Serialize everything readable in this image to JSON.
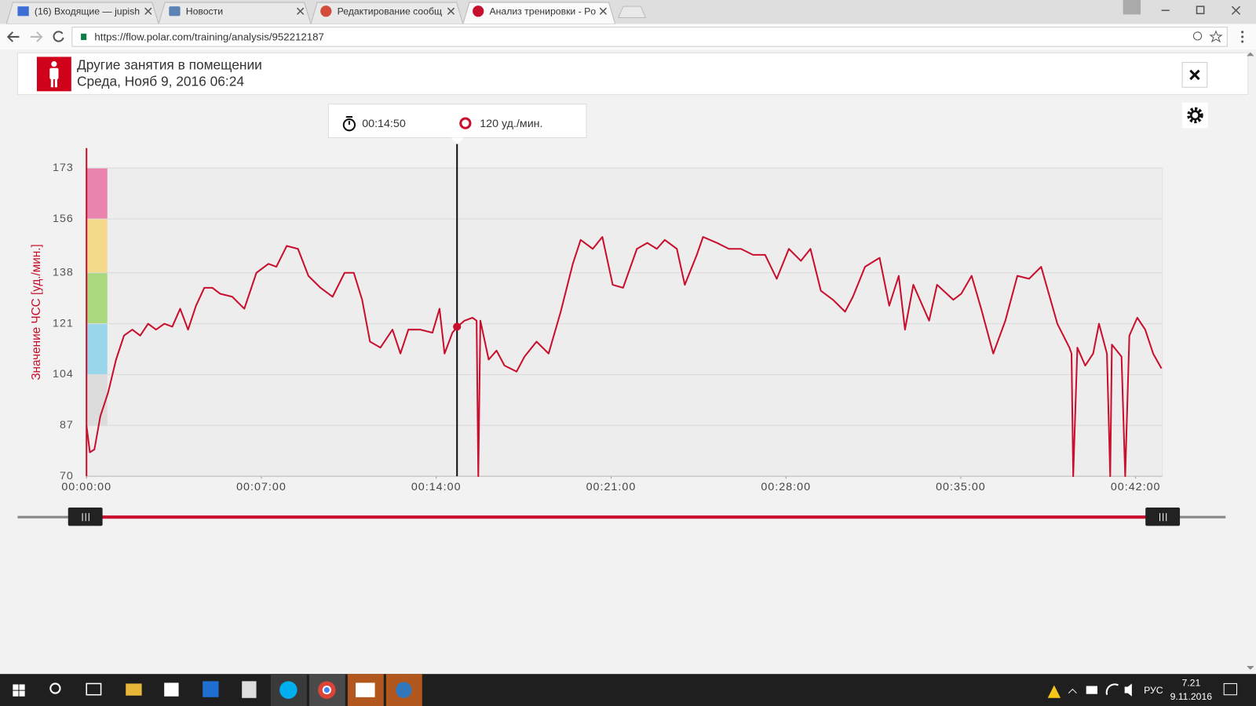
{
  "browser": {
    "tabs": [
      "(16) Входящие — jupish",
      "Новости",
      "Редактирование сообщ",
      "Анализ тренировки - Po"
    ],
    "url": "https://flow.polar.com/training/analysis/952212187"
  },
  "header": {
    "title": "Другие занятия в помещении",
    "date": "Среда, Нояб 9, 2016 06:24"
  },
  "tooltip": {
    "time": "00:14:50",
    "x": 890,
    "value": 120,
    "value_label": "120 уд./мин."
  },
  "chart_data": {
    "type": "line",
    "y_label": "Значение ЧСС [уд./мин.]",
    "color": "#c8102e",
    "x": [
      0,
      8,
      19,
      33,
      52,
      71,
      90,
      110,
      129,
      148,
      167,
      187,
      206,
      225,
      244,
      263,
      283,
      302,
      321,
      350,
      379,
      408,
      437,
      456,
      481,
      508,
      533,
      562,
      591,
      620,
      642,
      662,
      681,
      706,
      735,
      754,
      773,
      802,
      831,
      848,
      860,
      879,
      891,
      908,
      927,
      937,
      941,
      946,
      966,
      985,
      1004,
      1033,
      1052,
      1081,
      1110,
      1139,
      1168,
      1187,
      1216,
      1239,
      1264,
      1289,
      1322,
      1347,
      1370,
      1389,
      1418,
      1437,
      1466,
      1481,
      1514,
      1543,
      1572,
      1601,
      1630,
      1658,
      1687,
      1716,
      1739,
      1764,
      1793,
      1822,
      1841,
      1870,
      1905,
      1928,
      1951,
      1966,
      1986,
      2024,
      2043,
      2082,
      2101,
      2126,
      2149,
      2178,
      2207,
      2236,
      2264,
      2293,
      2332,
      2361,
      2366,
      2370,
      2380,
      2399,
      2418,
      2432,
      2451,
      2459,
      2463,
      2486,
      2495,
      2505,
      2524,
      2543,
      2562,
      2582
    ],
    "values": [
      87,
      78,
      79,
      90,
      98,
      109,
      117,
      119,
      117,
      121,
      119,
      121,
      120,
      126,
      119,
      127,
      133,
      133,
      131,
      130,
      126,
      138,
      141,
      140,
      147,
      146,
      137,
      133,
      130,
      138,
      138,
      129,
      115,
      113,
      119,
      111,
      119,
      119,
      118,
      126,
      111,
      118,
      120,
      122,
      123,
      122,
      70,
      122,
      109,
      112,
      107,
      105,
      110,
      115,
      111,
      125,
      141,
      149,
      146,
      150,
      134,
      133,
      146,
      148,
      146,
      149,
      146,
      134,
      144,
      150,
      148,
      146,
      146,
      144,
      144,
      136,
      146,
      142,
      146,
      132,
      129,
      125,
      130,
      140,
      143,
      127,
      137,
      119,
      134,
      122,
      134,
      129,
      131,
      137,
      126,
      111,
      122,
      137,
      136,
      140,
      121,
      113,
      111,
      70,
      113,
      107,
      111,
      121,
      111,
      70,
      114,
      110,
      70,
      117,
      123,
      119,
      111,
      106
    ],
    "xlim": [
      0,
      2584
    ],
    "ylim": [
      70,
      173
    ],
    "xticks": [
      {
        "value": 0,
        "label": "00:00:00"
      },
      {
        "value": 420,
        "label": "00:07:00"
      },
      {
        "value": 840,
        "label": "00:14:00"
      },
      {
        "value": 1260,
        "label": "00:21:00"
      },
      {
        "value": 1680,
        "label": "00:28:00"
      },
      {
        "value": 2100,
        "label": "00:35:00"
      },
      {
        "value": 2520,
        "label": "00:42:00"
      }
    ],
    "yticks": [
      70,
      87,
      104,
      121,
      138,
      156,
      173
    ],
    "grid": true,
    "zones": [
      {
        "from": 87,
        "to": 104,
        "color": "#dcdcdc"
      },
      {
        "from": 104,
        "to": 121,
        "color": "#9ad6ea"
      },
      {
        "from": 121,
        "to": 138,
        "color": "#a9d87e"
      },
      {
        "from": 138,
        "to": 156,
        "color": "#f3d98a"
      },
      {
        "from": 156,
        "to": 173,
        "color": "#e884ad"
      }
    ]
  },
  "taskbar": {
    "language": "РУС",
    "time": "7.21",
    "date": "9.11.2016"
  }
}
